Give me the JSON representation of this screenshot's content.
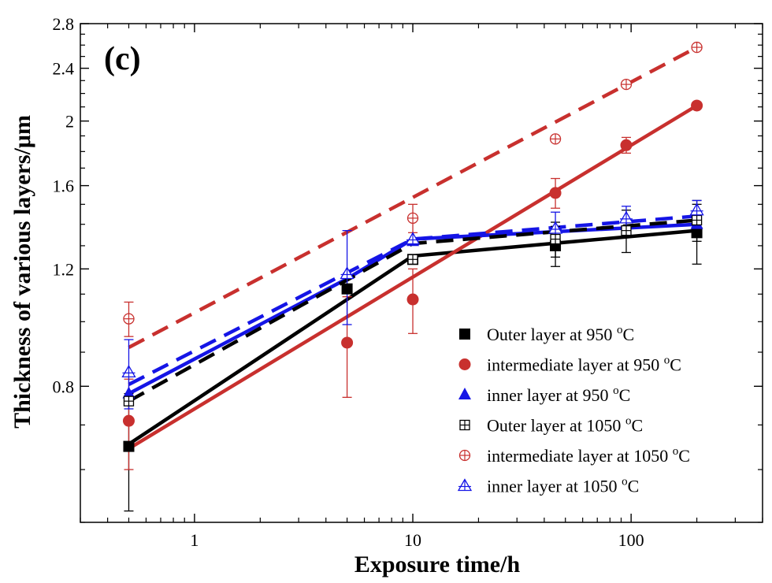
{
  "panel_label": "(c)",
  "chart_data": {
    "type": "scatter",
    "xlabel": "Exposure time/h",
    "ylabel": "Thickness of various layers/μm",
    "xscale": "log",
    "yscale": "log",
    "xlim": [
      0.3,
      400
    ],
    "ylim": [
      0.5,
      2.8
    ],
    "xticks": [
      1,
      10,
      100
    ],
    "yticks": [
      0.8,
      1.2,
      1.6,
      2,
      2.4,
      2.8
    ],
    "legend_position": "lower-right",
    "series": [
      {
        "name": "Outer layer at 950 ",
        "temp_sup": "o",
        "temp_suffix": "C",
        "color": "#000000",
        "marker": "square-filled",
        "line": "solid",
        "x": [
          0.5,
          5,
          10,
          45,
          200
        ],
        "y": [
          0.65,
          1.12,
          1.24,
          1.3,
          1.36
        ],
        "err": [
          0.13,
          0,
          0,
          0.09,
          0.14
        ],
        "fit": [
          [
            0.5,
            0.655
          ],
          [
            10,
            1.255
          ],
          [
            200,
            1.37
          ]
        ]
      },
      {
        "name": "intermediate layer at 950 ",
        "temp_sup": "o",
        "temp_suffix": "C",
        "color": "#c8302e",
        "marker": "circle-filled",
        "line": "solid",
        "x": [
          0.5,
          5,
          10,
          45,
          95,
          200
        ],
        "y": [
          0.71,
          0.93,
          1.08,
          1.56,
          1.84,
          2.11
        ],
        "err": [
          0.11,
          0.16,
          0.12,
          0.08,
          0.05,
          0.02
        ],
        "fit": [
          [
            0.5,
            0.645
          ],
          [
            200,
            2.11
          ]
        ]
      },
      {
        "name": "inner layer at 950 ",
        "temp_sup": "o",
        "temp_suffix": "C",
        "color": "#1515e6",
        "marker": "triangle-filled",
        "line": "solid",
        "x": [
          0.5,
          5,
          10,
          200
        ],
        "y": [
          0.78,
          1.18,
          1.32,
          1.4
        ],
        "err": [
          0,
          0,
          0,
          0
        ],
        "fit": [
          [
            0.5,
            0.78
          ],
          [
            5,
            1.16
          ],
          [
            10,
            1.33
          ],
          [
            200,
            1.4
          ]
        ]
      },
      {
        "name": "Outer layer at 1050 ",
        "temp_sup": "o",
        "temp_suffix": "C",
        "color": "#000000",
        "marker": "square-cross",
        "line": "dashed",
        "x": [
          0.5,
          10,
          45,
          95,
          200
        ],
        "y": [
          0.76,
          1.24,
          1.33,
          1.37,
          1.42
        ],
        "err": [
          0,
          0,
          0.08,
          0.1,
          0.1
        ],
        "fit": [
          [
            0.5,
            0.76
          ],
          [
            10,
            1.31
          ],
          [
            200,
            1.42
          ]
        ]
      },
      {
        "name": "intermediate layer at 1050 ",
        "temp_sup": "o",
        "temp_suffix": "C",
        "color": "#c8302e",
        "marker": "circle-cross",
        "line": "dashed",
        "x": [
          0.5,
          10,
          45,
          95,
          200
        ],
        "y": [
          1.01,
          1.43,
          1.88,
          2.27,
          2.58
        ],
        "err": [
          0.06,
          0.07,
          0,
          0,
          0
        ],
        "fit": [
          [
            0.5,
            0.915
          ],
          [
            200,
            2.58
          ]
        ]
      },
      {
        "name": "inner layer at 1050 ",
        "temp_sup": "o",
        "temp_suffix": "C",
        "color": "#1515e6",
        "marker": "triangle-cross",
        "line": "dashed",
        "x": [
          0.5,
          5,
          10,
          45,
          95,
          200
        ],
        "y": [
          0.84,
          1.18,
          1.33,
          1.38,
          1.43,
          1.47
        ],
        "err": [
          0.1,
          0.19,
          0,
          0.08,
          0.06,
          0.05
        ],
        "fit": [
          [
            0.5,
            0.805
          ],
          [
            10,
            1.33
          ],
          [
            200,
            1.44
          ]
        ]
      }
    ]
  }
}
